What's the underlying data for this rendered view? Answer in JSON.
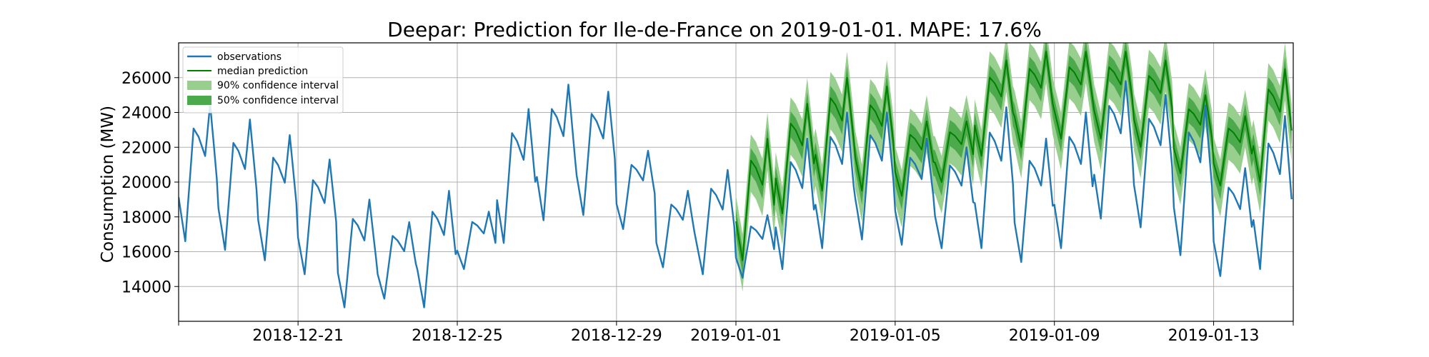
{
  "chart_data": {
    "type": "line",
    "title": "Deepar: Prediction for Ile-de-France on 2019-01-01. MAPE: 17.6%",
    "xlabel": "",
    "ylabel": "Consumption (MW)",
    "x_range": [
      "2018-12-18",
      "2019-01-15"
    ],
    "ylim": [
      12000,
      28000
    ],
    "x_ticks": [
      "2018-12-21",
      "2018-12-25",
      "2018-12-29",
      "2019-01-01",
      "2019-01-05",
      "2019-01-09",
      "2019-01-13"
    ],
    "y_ticks": [
      14000,
      16000,
      18000,
      20000,
      22000,
      24000,
      26000
    ],
    "grid": true,
    "legend_position": "top-left",
    "colors": {
      "observations": "#1f77b4",
      "median": "#008000",
      "ci90": "#98cf8f",
      "ci50": "#4caa4c"
    },
    "legend": [
      "observations",
      "median prediction",
      "90% confidence interval",
      "50% confidence interval"
    ],
    "observations_daily": [
      {
        "date": "2018-12-18",
        "min": 16600,
        "max": 24500
      },
      {
        "date": "2018-12-19",
        "min": 16100,
        "max": 23600
      },
      {
        "date": "2018-12-20",
        "min": 15500,
        "max": 22700
      },
      {
        "date": "2018-12-21",
        "min": 14700,
        "max": 21300
      },
      {
        "date": "2018-12-22",
        "min": 12800,
        "max": 19000
      },
      {
        "date": "2018-12-23",
        "min": 13300,
        "max": 17700
      },
      {
        "date": "2018-12-24",
        "min": 12800,
        "max": 19500
      },
      {
        "date": "2018-12-25",
        "min": 15000,
        "max": 18300
      },
      {
        "date": "2018-12-26",
        "min": 16500,
        "max": 24200
      },
      {
        "date": "2018-12-27",
        "min": 17800,
        "max": 25600
      },
      {
        "date": "2018-12-28",
        "min": 18100,
        "max": 25200
      },
      {
        "date": "2018-12-29",
        "min": 17300,
        "max": 21800
      },
      {
        "date": "2018-12-30",
        "min": 15100,
        "max": 19500
      },
      {
        "date": "2018-12-31",
        "min": 14700,
        "max": 20700
      },
      {
        "date": "2019-01-01",
        "min": 14500,
        "max": 18100
      },
      {
        "date": "2019-01-02",
        "min": 15000,
        "max": 22500
      },
      {
        "date": "2019-01-03",
        "min": 16200,
        "max": 24000
      },
      {
        "date": "2019-01-04",
        "min": 16700,
        "max": 24000
      },
      {
        "date": "2019-01-05",
        "min": 16400,
        "max": 22500
      },
      {
        "date": "2019-01-06",
        "min": 16200,
        "max": 22000
      },
      {
        "date": "2019-01-07",
        "min": 16200,
        "max": 24300
      },
      {
        "date": "2019-01-08",
        "min": 15400,
        "max": 22500
      },
      {
        "date": "2019-01-09",
        "min": 16200,
        "max": 24000
      },
      {
        "date": "2019-01-10",
        "min": 17900,
        "max": 25800
      },
      {
        "date": "2019-01-11",
        "min": 17400,
        "max": 25000
      },
      {
        "date": "2019-01-12",
        "min": 15800,
        "max": 24400
      },
      {
        "date": "2019-01-13",
        "min": 14600,
        "max": 20800
      },
      {
        "date": "2019-01-14",
        "min": 15000,
        "max": 23800
      }
    ],
    "median_prediction_daily": [
      {
        "date": "2019-01-01",
        "min": 15500,
        "max": 22500
      },
      {
        "date": "2019-01-02",
        "min": 18200,
        "max": 24500
      },
      {
        "date": "2019-01-03",
        "min": 19500,
        "max": 26000
      },
      {
        "date": "2019-01-04",
        "min": 19500,
        "max": 25500
      },
      {
        "date": "2019-01-05",
        "min": 19200,
        "max": 23500
      },
      {
        "date": "2019-01-06",
        "min": 20000,
        "max": 23500
      },
      {
        "date": "2019-01-07",
        "min": 21500,
        "max": 27000
      },
      {
        "date": "2019-01-08",
        "min": 22000,
        "max": 27500
      },
      {
        "date": "2019-01-09",
        "min": 22500,
        "max": 27500
      },
      {
        "date": "2019-01-10",
        "min": 22500,
        "max": 27500
      },
      {
        "date": "2019-01-11",
        "min": 22000,
        "max": 27000
      },
      {
        "date": "2019-01-12",
        "min": 20500,
        "max": 25000
      },
      {
        "date": "2019-01-13",
        "min": 19800,
        "max": 23800
      },
      {
        "date": "2019-01-14",
        "min": 20000,
        "max": 26500
      }
    ]
  }
}
